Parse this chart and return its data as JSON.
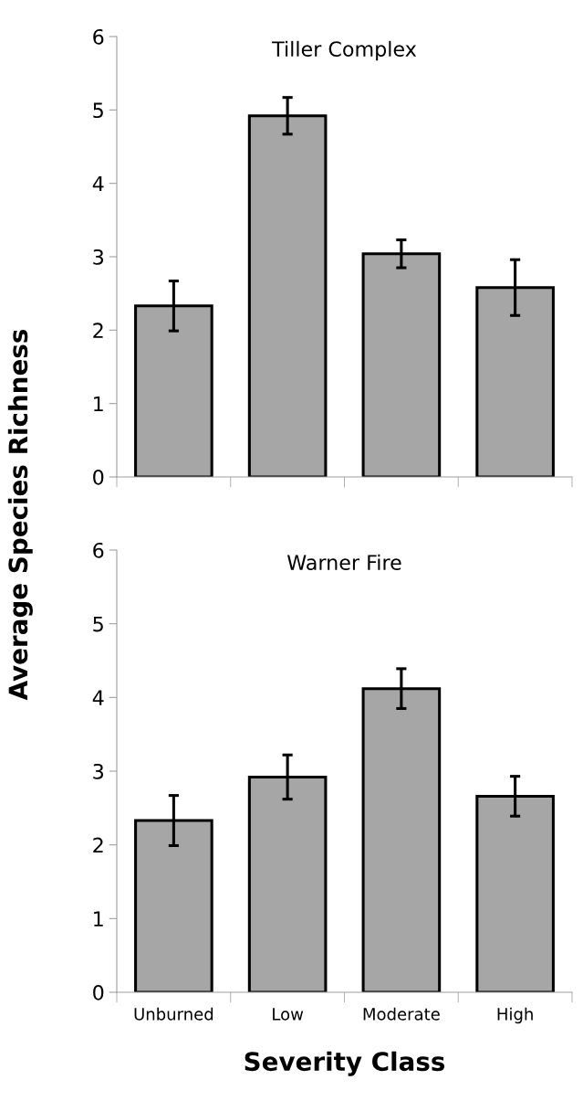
{
  "chart_data": [
    {
      "type": "bar",
      "title": "Tiller Complex",
      "ylabel": "Average Species Richness",
      "categories": [
        null,
        null,
        null,
        null
      ],
      "values": [
        2.33,
        4.92,
        3.04,
        2.58
      ],
      "errors": [
        0.34,
        0.25,
        0.19,
        0.38
      ],
      "color": "#a6a6a6",
      "ylim": [
        0,
        6
      ],
      "yticks": [
        0,
        1,
        2,
        3,
        4,
        5,
        6
      ],
      "grid": false,
      "legend": false
    },
    {
      "type": "bar",
      "title": "Warner Fire",
      "xlabel": "Severity Class",
      "categories": [
        "Unburned",
        "Low",
        "Moderate",
        "High"
      ],
      "values": [
        2.33,
        2.92,
        4.12,
        2.66
      ],
      "errors": [
        0.34,
        0.3,
        0.27,
        0.27
      ],
      "color": "#a6a6a6",
      "ylim": [
        0,
        6
      ],
      "yticks": [
        0,
        1,
        2,
        3,
        4,
        5,
        6
      ],
      "grid": false,
      "legend": false
    }
  ]
}
